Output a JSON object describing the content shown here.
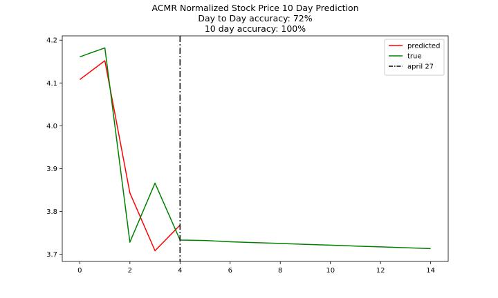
{
  "chart_data": {
    "type": "line",
    "title_lines": [
      "ACMR Normalized Stock Price 10 Day Prediction",
      "Day to Day accuracy: 72%",
      "10 day accuracy: 100%"
    ],
    "xlabel": "",
    "ylabel": "",
    "xlim": [
      -0.7,
      14.7
    ],
    "ylim": [
      3.683,
      4.21
    ],
    "xticks": [
      0,
      2,
      4,
      6,
      8,
      10,
      12,
      14
    ],
    "yticks": [
      3.7,
      3.8,
      3.9,
      4.0,
      4.1,
      4.2
    ],
    "ytick_labels": [
      "3.7",
      "3.8",
      "3.9",
      "4.0",
      "4.1",
      "4.2"
    ],
    "series": [
      {
        "name": "predicted",
        "color": "#ff0000",
        "x": [
          0,
          1,
          2,
          3,
          4
        ],
        "values": [
          4.108,
          4.152,
          3.843,
          3.708,
          3.768
        ]
      },
      {
        "name": "true",
        "color": "#008000",
        "x": [
          0,
          1,
          2,
          3,
          4,
          5,
          6,
          7,
          8,
          9,
          10,
          11,
          12,
          13,
          14
        ],
        "values": [
          4.161,
          4.182,
          3.728,
          3.866,
          3.733,
          3.732,
          3.729,
          3.727,
          3.725,
          3.723,
          3.721,
          3.719,
          3.717,
          3.715,
          3.713
        ]
      }
    ],
    "vline": {
      "x": 4,
      "label": "april 27",
      "color": "#000000",
      "style": "dashdot"
    },
    "legend_position": "top-right",
    "grid": false
  }
}
